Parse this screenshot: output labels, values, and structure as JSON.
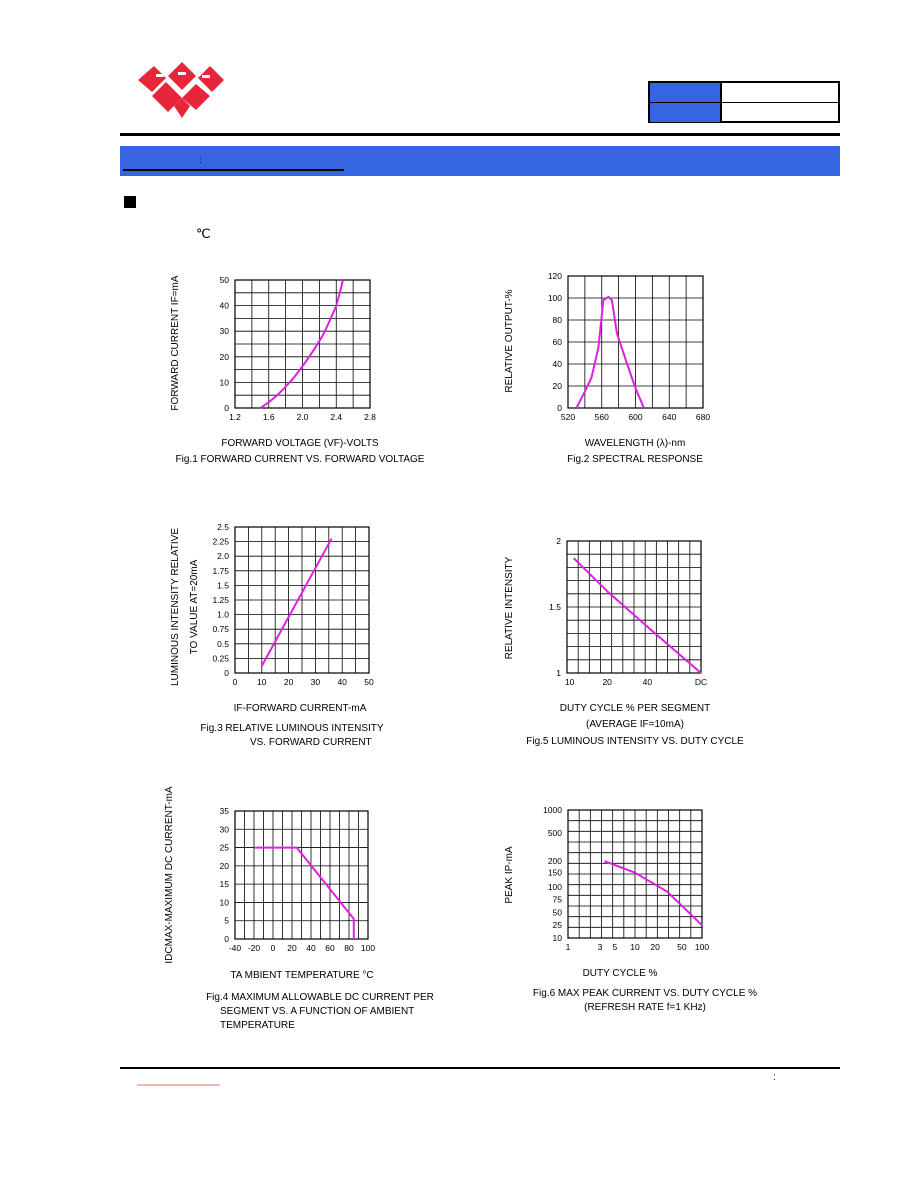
{
  "header": {
    "degree_note": "℃",
    "band_colon": ":",
    "footer_colon": ":",
    "brand_color": "#e8263b",
    "band_color": "#3565e0"
  },
  "chart_data": [
    {
      "id": "fig1",
      "type": "line",
      "caption": [
        "Fig.1  FORWARD  CURRENT  VS.  FORWARD  VOLTAGE"
      ],
      "xlabel": "FORWARD  VOLTAGE  (VF)-VOLTS",
      "ylabel": "FORWARD  CURRENT  IF=mA",
      "xlim": [
        1.2,
        2.8
      ],
      "ylim": [
        0,
        50
      ],
      "xticks": [
        "1.2",
        "1.6",
        "2.0",
        "2.4",
        "2.8"
      ],
      "yticks": [
        "0",
        "10",
        "20",
        "30",
        "40",
        "50"
      ],
      "grid": true,
      "series": [
        {
          "x": [
            1.5,
            1.7,
            1.9,
            2.1,
            2.25,
            2.4,
            2.48
          ],
          "y": [
            0,
            5,
            12,
            21,
            29,
            40,
            50
          ]
        }
      ]
    },
    {
      "id": "fig2",
      "type": "line",
      "caption": [
        "Fig.2  SPECTRAL  RESPONSE"
      ],
      "xlabel": "WAVELENGTH  (λ)-nm",
      "ylabel": "RELATIVE  OUTPUT-%",
      "xlim": [
        520,
        680
      ],
      "ylim": [
        0,
        120
      ],
      "xticks": [
        "520",
        "560",
        "600",
        "640",
        "680"
      ],
      "yticks": [
        "0",
        "20",
        "40",
        "60",
        "80",
        "100",
        "120"
      ],
      "grid": true,
      "series": [
        {
          "x": [
            530,
            540,
            548,
            556,
            562,
            568,
            572,
            578,
            590,
            600,
            610
          ],
          "y": [
            0,
            15,
            28,
            55,
            98,
            101,
            98,
            68,
            40,
            18,
            0
          ]
        }
      ]
    },
    {
      "id": "fig3",
      "type": "line",
      "caption": [
        "Fig.3  RELATIVE  LUMINOUS  INTENSITY",
        "VS.  FORWARD  CURRENT"
      ],
      "xlabel": "IF-FORWARD  CURRENT-mA",
      "ylabel": "LUMINOUS  INTENSITY  RELATIVE",
      "ylabel2": "TO  VALUE  AT=20mA",
      "xlim": [
        0,
        50
      ],
      "ylim": [
        0,
        2.5
      ],
      "xticks": [
        "0",
        "10",
        "20",
        "30",
        "40",
        "50"
      ],
      "yticks": [
        "0",
        "0.25",
        "0.5",
        "0.75",
        "1.0",
        "1.25",
        "1.5",
        "1.75",
        "2.0",
        "2.25",
        "2.5"
      ],
      "grid": true,
      "series": [
        {
          "x": [
            10,
            36
          ],
          "y": [
            0.12,
            2.3
          ]
        }
      ]
    },
    {
      "id": "fig5",
      "type": "line",
      "caption": [
        "Fig.5  LUMINOUS  INTENSITY  VS.  DUTY  CYCLE"
      ],
      "xlabel": "DUTY  CYCLE  %  PER  SEGMENT",
      "xlabel2": "(AVERAGE  IF=10mA)",
      "ylabel": "RELATIVE  INTENSITY",
      "ylim": [
        1,
        2
      ],
      "xticks": [
        "10",
        "20",
        "40",
        "DC"
      ],
      "yticks": [
        "1",
        "1.5",
        "2"
      ],
      "grid": true,
      "series": [
        {
          "x": [
            0.05,
            0.3,
            0.6,
            1.0
          ],
          "y": [
            1.87,
            1.62,
            1.35,
            1.0
          ]
        }
      ]
    },
    {
      "id": "fig4",
      "type": "line",
      "caption": [
        "Fig.4  MAXIMUM  ALLOWABLE  DC  CURRENT  PER",
        "SEGMENT  VS.  A  FUNCTION  OF  AMBIENT",
        "TEMPERATURE"
      ],
      "xlabel": "TA  MBIENT  TEMPERATURE  °C",
      "ylabel": "IDCMAX-MAXIMUM  DC  CURRENT-mA",
      "xlim": [
        -40,
        100
      ],
      "ylim": [
        0,
        35
      ],
      "xticks": [
        "-40",
        "-20",
        "0",
        "20",
        "40",
        "60",
        "80",
        "100"
      ],
      "yticks": [
        "0",
        "5",
        "10",
        "15",
        "20",
        "25",
        "30",
        "35"
      ],
      "grid": true,
      "series": [
        {
          "x": [
            -20,
            25,
            85,
            85
          ],
          "y": [
            25,
            25,
            5.5,
            0
          ]
        }
      ]
    },
    {
      "id": "fig6",
      "type": "line",
      "caption": [
        "Fig.6  MAX  PEAK  CURRENT  VS.  DUTY  CYCLE  %",
        "(REFRESH  RATE  f=1  KHz)"
      ],
      "xlabel": "DUTY  CYCLE  %",
      "ylabel": "PEAK  IP-mA",
      "xticks": [
        "1",
        "3",
        "5",
        "10",
        "20",
        "50",
        "100"
      ],
      "yticks": [
        "10",
        "25",
        "50",
        "75",
        "100",
        "150",
        "200",
        "500",
        "1000"
      ],
      "grid": true,
      "series": [
        {
          "x": [
            3.5,
            10,
            30,
            100
          ],
          "y": [
            200,
            150,
            90,
            25
          ]
        }
      ]
    }
  ]
}
